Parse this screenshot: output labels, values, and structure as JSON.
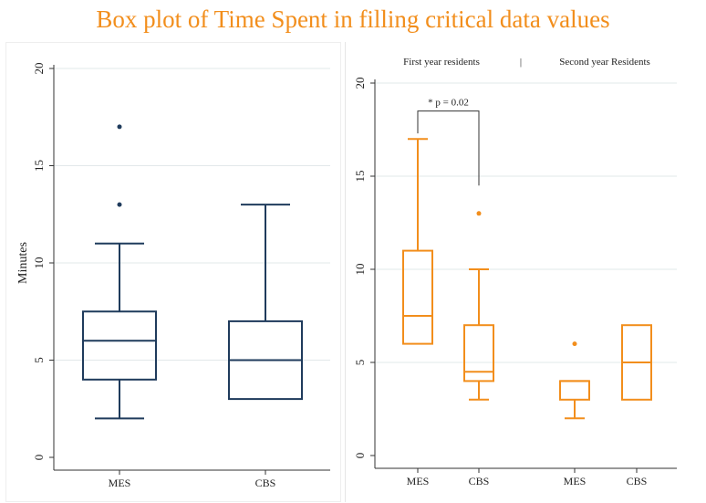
{
  "title": "Box plot of Time Spent in filling critical data values",
  "colors": {
    "title": "#f28e1c",
    "left_series": "#1f3b5c",
    "right_series": "#f28e1c",
    "grid": "#e2e8ea",
    "axis": "#333333"
  },
  "chart_data": [
    {
      "type": "boxplot",
      "panel": "left",
      "ylabel": "Minutes",
      "ylim": [
        0,
        20
      ],
      "yticks": [
        "0",
        "5",
        "10",
        "15",
        "20"
      ],
      "grid": true,
      "categories": [
        "MES",
        "CBS"
      ],
      "boxes": [
        {
          "label": "MES",
          "whisker_low": 2,
          "q1": 4,
          "median": 6,
          "q3": 7.5,
          "whisker_high": 11,
          "outliers": [
            13,
            17
          ]
        },
        {
          "label": "CBS",
          "whisker_low": 3,
          "q1": 3,
          "median": 5,
          "q3": 7,
          "whisker_high": 13,
          "outliers": []
        }
      ]
    },
    {
      "type": "boxplot",
      "panel": "right",
      "ylabel": "",
      "ylim": [
        0,
        20
      ],
      "yticks": [
        "0",
        "5",
        "10",
        "15",
        "20"
      ],
      "grid": true,
      "groups": [
        "First year residents",
        "Second year Residents"
      ],
      "group_separator": "|",
      "categories": [
        "MES",
        "CBS",
        "MES",
        "CBS"
      ],
      "annotation": {
        "text": "* p = 0.02",
        "from_box": 0,
        "to_box": 1,
        "from_value": 17.3,
        "to_value": 14.5,
        "bracket_value": 18.5
      },
      "boxes": [
        {
          "label": "MES",
          "group": "First year residents",
          "whisker_low": 6,
          "q1": 6,
          "median": 7.5,
          "q3": 11,
          "whisker_high": 17,
          "outliers": []
        },
        {
          "label": "CBS",
          "group": "First year residents",
          "whisker_low": 3,
          "q1": 4,
          "median": 4.5,
          "q3": 7,
          "whisker_high": 10,
          "outliers": [
            13
          ]
        },
        {
          "label": "MES",
          "group": "Second year Residents",
          "whisker_low": 2,
          "q1": 3,
          "median": 4,
          "q3": 4,
          "whisker_high": 4,
          "outliers": [
            6
          ]
        },
        {
          "label": "CBS",
          "group": "Second year Residents",
          "whisker_low": 3,
          "q1": 3,
          "median": 5,
          "q3": 7,
          "whisker_high": 7,
          "outliers": []
        }
      ]
    }
  ]
}
